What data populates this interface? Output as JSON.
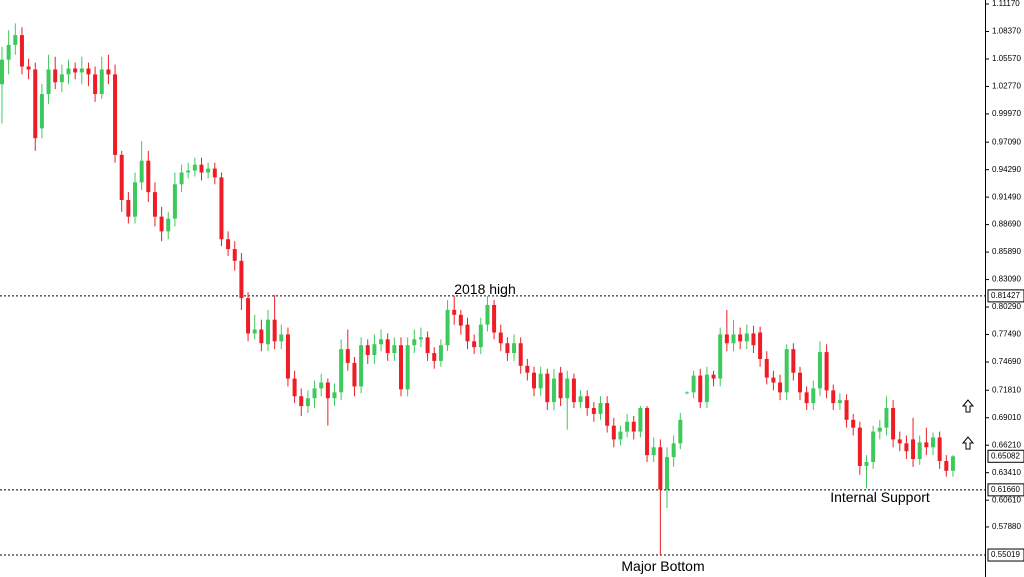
{
  "chart_data": {
    "type": "candlestick",
    "up_color": "#3ec95c",
    "down_color": "#ee1c25",
    "open": [
      1.03,
      1.055,
      1.07,
      1.08,
      1.048,
      1.045,
      0.985,
      1.02,
      1.045,
      1.032,
      1.04,
      1.046,
      1.042,
      1.046,
      1.04,
      1.02,
      1.045,
      1.04,
      0.958,
      0.912,
      0.895,
      0.93,
      0.952,
      0.92,
      0.895,
      0.88,
      0.893,
      0.928,
      0.94,
      0.942,
      0.948,
      0.94,
      0.944,
      0.935,
      0.872,
      0.862,
      0.85,
      0.812,
      0.776,
      0.78,
      0.765,
      0.79,
      0.768,
      0.775,
      0.73,
      0.712,
      0.702,
      0.71,
      0.72,
      0.726,
      0.71,
      0.716,
      0.76,
      0.746,
      0.722,
      0.764,
      0.754,
      0.765,
      0.77,
      0.756,
      0.764,
      0.719,
      0.764,
      0.77,
      0.772,
      0.756,
      0.748,
      0.764,
      0.8,
      0.795,
      0.785,
      0.768,
      0.762,
      0.785,
      0.805,
      0.777,
      0.766,
      0.756,
      0.766,
      0.743,
      0.736,
      0.72,
      0.735,
      0.706,
      0.736,
      0.71,
      0.73,
      0.706,
      0.712,
      0.7,
      0.694,
      0.705,
      0.682,
      0.668,
      0.676,
      0.686,
      0.676,
      0.7,
      0.652,
      0.66,
      0.617,
      0.65,
      0.664,
      0.715,
      0.716,
      0.733,
      0.706,
      0.734,
      0.73,
      0.775,
      0.766,
      0.775,
      0.768,
      0.776,
      0.777,
      0.75,
      0.731,
      0.726,
      0.716,
      0.76,
      0.736,
      0.716,
      0.705,
      0.72,
      0.757,
      0.718,
      0.705,
      0.708,
      0.688,
      0.68,
      0.641,
      0.645,
      0.676,
      0.68,
      0.7,
      0.668,
      0.664,
      0.668,
      0.648,
      0.665,
      0.66,
      0.67,
      0.646,
      0.636
    ],
    "high": [
      1.068,
      1.085,
      1.092,
      1.088,
      1.056,
      1.052,
      1.03,
      1.06,
      1.058,
      1.05,
      1.055,
      1.052,
      1.058,
      1.052,
      1.048,
      1.058,
      1.06,
      1.05,
      0.962,
      0.92,
      0.94,
      0.972,
      0.962,
      0.93,
      0.905,
      0.9,
      0.94,
      0.948,
      0.95,
      0.955,
      0.955,
      0.95,
      0.95,
      0.94,
      0.88,
      0.87,
      0.858,
      0.818,
      0.795,
      0.79,
      0.8,
      0.815,
      0.785,
      0.782,
      0.738,
      0.72,
      0.718,
      0.728,
      0.735,
      0.73,
      0.725,
      0.77,
      0.78,
      0.752,
      0.772,
      0.77,
      0.775,
      0.78,
      0.776,
      0.772,
      0.772,
      0.772,
      0.78,
      0.782,
      0.778,
      0.762,
      0.77,
      0.81,
      0.814,
      0.8,
      0.792,
      0.775,
      0.792,
      0.814,
      0.81,
      0.785,
      0.772,
      0.775,
      0.772,
      0.75,
      0.742,
      0.742,
      0.74,
      0.74,
      0.742,
      0.738,
      0.735,
      0.718,
      0.718,
      0.706,
      0.712,
      0.712,
      0.69,
      0.682,
      0.694,
      0.692,
      0.702,
      0.702,
      0.67,
      0.668,
      0.66,
      0.672,
      0.695,
      0.717,
      0.738,
      0.74,
      0.742,
      0.738,
      0.782,
      0.8,
      0.79,
      0.782,
      0.785,
      0.784,
      0.783,
      0.758,
      0.738,
      0.734,
      0.765,
      0.766,
      0.742,
      0.722,
      0.728,
      0.768,
      0.765,
      0.724,
      0.715,
      0.714,
      0.694,
      0.686,
      0.652,
      0.682,
      0.688,
      0.712,
      0.708,
      0.676,
      0.672,
      0.69,
      0.672,
      0.68,
      0.675,
      0.676,
      0.652,
      0.652
    ],
    "low": [
      0.99,
      1.04,
      1.06,
      1.04,
      1.035,
      0.962,
      0.975,
      1.01,
      1.025,
      1.022,
      1.03,
      1.035,
      1.03,
      1.028,
      1.012,
      1.015,
      1.03,
      0.95,
      0.9,
      0.888,
      0.888,
      0.922,
      0.91,
      0.885,
      0.87,
      0.872,
      0.885,
      0.92,
      0.934,
      0.936,
      0.932,
      0.934,
      0.928,
      0.865,
      0.855,
      0.84,
      0.8,
      0.768,
      0.77,
      0.758,
      0.758,
      0.76,
      0.76,
      0.722,
      0.705,
      0.692,
      0.695,
      0.7,
      0.712,
      0.682,
      0.702,
      0.708,
      0.738,
      0.712,
      0.715,
      0.745,
      0.745,
      0.758,
      0.748,
      0.748,
      0.712,
      0.712,
      0.756,
      0.762,
      0.748,
      0.74,
      0.742,
      0.758,
      0.785,
      0.775,
      0.76,
      0.755,
      0.755,
      0.778,
      0.77,
      0.758,
      0.748,
      0.748,
      0.735,
      0.728,
      0.712,
      0.712,
      0.698,
      0.698,
      0.702,
      0.678,
      0.7,
      0.7,
      0.692,
      0.686,
      0.688,
      0.675,
      0.66,
      0.662,
      0.67,
      0.668,
      0.67,
      0.645,
      0.645,
      0.5502,
      0.598,
      0.64,
      0.658,
      0.714,
      0.71,
      0.7,
      0.7,
      0.722,
      0.722,
      0.758,
      0.758,
      0.76,
      0.76,
      0.756,
      0.742,
      0.724,
      0.718,
      0.708,
      0.708,
      0.728,
      0.708,
      0.698,
      0.698,
      0.712,
      0.71,
      0.698,
      0.698,
      0.68,
      0.672,
      0.632,
      0.618,
      0.638,
      0.668,
      0.672,
      0.66,
      0.656,
      0.648,
      0.64,
      0.642,
      0.652,
      0.652,
      0.638,
      0.63,
      0.63
    ],
    "close": [
      1.055,
      1.07,
      1.08,
      1.048,
      1.045,
      0.975,
      1.02,
      1.045,
      1.032,
      1.04,
      1.046,
      1.042,
      1.046,
      1.04,
      1.02,
      1.045,
      1.04,
      0.958,
      0.912,
      0.895,
      0.93,
      0.952,
      0.92,
      0.895,
      0.88,
      0.893,
      0.928,
      0.94,
      0.942,
      0.948,
      0.94,
      0.944,
      0.935,
      0.872,
      0.862,
      0.85,
      0.812,
      0.776,
      0.78,
      0.766,
      0.79,
      0.768,
      0.775,
      0.73,
      0.712,
      0.702,
      0.71,
      0.72,
      0.726,
      0.71,
      0.716,
      0.76,
      0.746,
      0.722,
      0.764,
      0.754,
      0.765,
      0.77,
      0.756,
      0.764,
      0.719,
      0.764,
      0.77,
      0.772,
      0.756,
      0.748,
      0.764,
      0.8,
      0.795,
      0.784,
      0.768,
      0.762,
      0.785,
      0.805,
      0.777,
      0.766,
      0.756,
      0.766,
      0.743,
      0.736,
      0.72,
      0.735,
      0.706,
      0.73,
      0.71,
      0.73,
      0.706,
      0.712,
      0.7,
      0.694,
      0.705,
      0.682,
      0.668,
      0.676,
      0.686,
      0.676,
      0.7,
      0.652,
      0.66,
      0.617,
      0.65,
      0.664,
      0.688,
      0.716,
      0.733,
      0.706,
      0.734,
      0.73,
      0.775,
      0.766,
      0.775,
      0.768,
      0.776,
      0.764,
      0.75,
      0.731,
      0.726,
      0.716,
      0.76,
      0.736,
      0.716,
      0.705,
      0.72,
      0.757,
      0.718,
      0.705,
      0.708,
      0.688,
      0.68,
      0.641,
      0.645,
      0.676,
      0.68,
      0.7,
      0.668,
      0.664,
      0.656,
      0.648,
      0.665,
      0.66,
      0.67,
      0.646,
      0.636,
      0.6508
    ],
    "ylim": [
      0.5278,
      1.1158
    ],
    "yticks": [
      {
        "value": 1.1117,
        "label": "1.11170"
      },
      {
        "value": 1.0837,
        "label": "1.08370"
      },
      {
        "value": 1.0557,
        "label": "1.05570"
      },
      {
        "value": 1.0277,
        "label": "1.02770"
      },
      {
        "value": 0.9997,
        "label": "0.99970"
      },
      {
        "value": 0.9709,
        "label": "0.97090"
      },
      {
        "value": 0.9429,
        "label": "0.94290"
      },
      {
        "value": 0.9149,
        "label": "0.91490"
      },
      {
        "value": 0.8869,
        "label": "0.88690"
      },
      {
        "value": 0.8589,
        "label": "0.85890"
      },
      {
        "value": 0.8309,
        "label": "0.83090"
      },
      {
        "value": 0.8029,
        "label": "0.80290"
      },
      {
        "value": 0.7749,
        "label": "0.77490"
      },
      {
        "value": 0.7469,
        "label": "0.74690"
      },
      {
        "value": 0.7181,
        "label": "0.71810"
      },
      {
        "value": 0.6901,
        "label": "0.69010"
      },
      {
        "value": 0.6621,
        "label": "0.66210"
      },
      {
        "value": 0.6341,
        "label": "0.63410"
      },
      {
        "value": 0.6061,
        "label": "0.60610"
      },
      {
        "value": 0.5788,
        "label": "0.57880"
      }
    ],
    "levels": [
      {
        "value": 0.81427,
        "label": "0.81427",
        "line": true
      },
      {
        "value": 0.65082,
        "label": "0.65082",
        "line": false
      },
      {
        "value": 0.6166,
        "label": "0.61660",
        "line": true
      },
      {
        "value": 0.55019,
        "label": "0.55019",
        "line": true
      }
    ],
    "annotations": [
      "2018 high",
      "Internal Support",
      "Major Bottom"
    ]
  }
}
